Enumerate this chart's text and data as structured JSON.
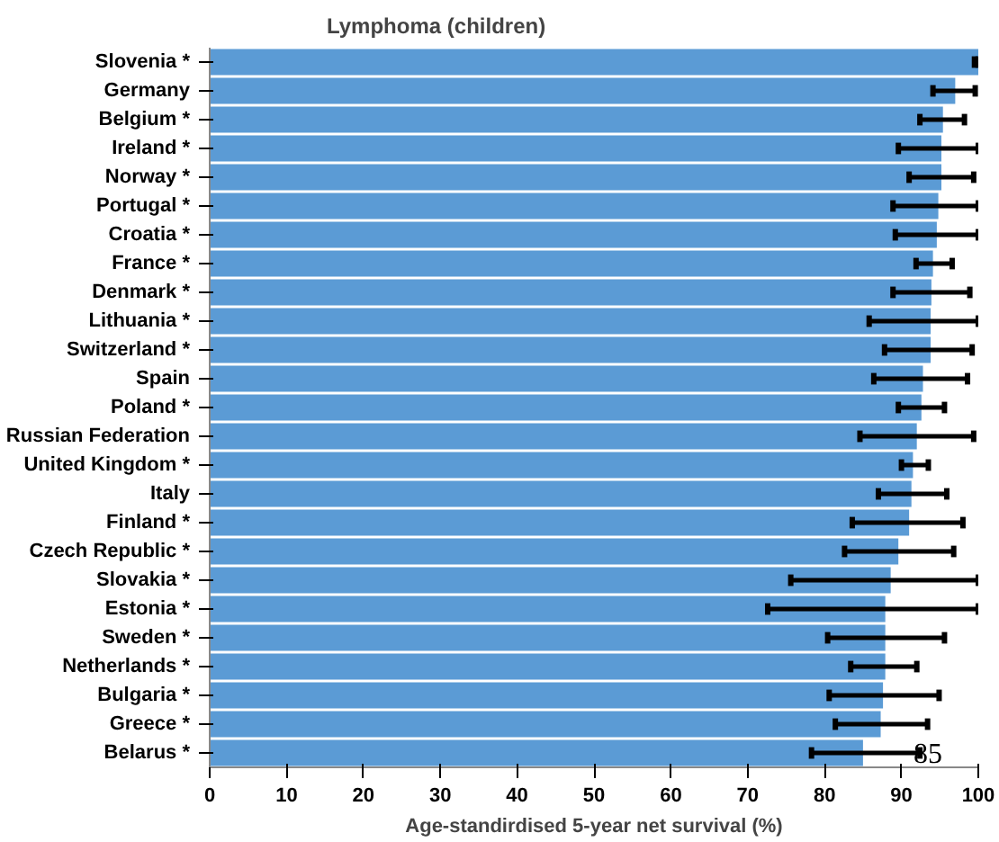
{
  "chart_data": {
    "type": "bar",
    "orientation": "horizontal",
    "title": "Lymphoma (children)",
    "xlabel": "Age-standirdised 5-year net survival (%)",
    "categories": [
      "Slovenia *",
      "Germany",
      "Belgium *",
      "Ireland *",
      "Norway *",
      "Portugal *",
      "Croatia *",
      "France *",
      "Denmark *",
      "Lithuania *",
      "Switzerland *",
      "Spain",
      "Poland *",
      "Russian Federation",
      "United Kingdom *",
      "Italy",
      "Finland *",
      "Czech Republic *",
      "Slovakia *",
      "Estonia *",
      "Sweden *",
      "Netherlands *",
      "Bulgaria *",
      "Greece *",
      "Belarus *"
    ],
    "values": [
      100,
      97,
      95.4,
      95.2,
      95.2,
      94.8,
      94.6,
      94.1,
      93.9,
      93.8,
      93.8,
      92.8,
      92.6,
      92,
      91.5,
      91.3,
      91,
      89.6,
      88.6,
      87.9,
      87.9,
      87.9,
      87.6,
      87.3,
      85
    ],
    "errors": [
      [
        99.5,
        100
      ],
      [
        94.1,
        99.6
      ],
      [
        92.4,
        98.2
      ],
      [
        89.6,
        100
      ],
      [
        91,
        99.4
      ],
      [
        88.9,
        100
      ],
      [
        89.2,
        100
      ],
      [
        91.9,
        96.6
      ],
      [
        88.9,
        98.9
      ],
      [
        85.8,
        100
      ],
      [
        87.8,
        99.2
      ],
      [
        86.4,
        98.6
      ],
      [
        89.6,
        95.6
      ],
      [
        84.6,
        99.4
      ],
      [
        90,
        93.5
      ],
      [
        87,
        95.9
      ],
      [
        83.6,
        98
      ],
      [
        82.6,
        96.8
      ],
      [
        75.6,
        100
      ],
      [
        72.6,
        100
      ],
      [
        80.4,
        95.6
      ],
      [
        83.4,
        92
      ],
      [
        80.6,
        94.9
      ],
      [
        81.4,
        93.4
      ],
      [
        78.3,
        92.4
      ]
    ],
    "value_labels": [
      null,
      null,
      null,
      null,
      null,
      null,
      null,
      null,
      null,
      null,
      null,
      null,
      null,
      null,
      null,
      null,
      null,
      null,
      null,
      null,
      null,
      null,
      null,
      null,
      "85"
    ],
    "color": "#5b9bd5",
    "xlim": [
      0,
      100
    ],
    "xticks": [
      0,
      10,
      20,
      30,
      40,
      50,
      60,
      70,
      80,
      90,
      100
    ],
    "grid": false
  }
}
